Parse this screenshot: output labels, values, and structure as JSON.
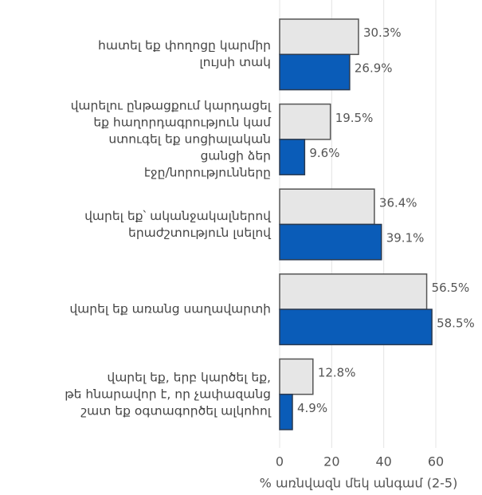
{
  "chart_data": {
    "type": "bar",
    "orientation": "horizontal",
    "categories": [
      "հատել եք փողոցը կարմիր\nլույսի տակ",
      "վարելու ընթացքում կարդացել\nեք հաղորդագրություն կամ\nստուգել եք սոցիալական\nցանցի ձեր\nէջը/նորությունները",
      "վարել եք՝ ականջակալներով\nերաժշտություն լսելով",
      "վարել եք առանց սաղավարտի",
      "վարել եք, երբ կարծել եք,\nթե հնարավոր է, որ չափազանց\nշատ եք օգտագործել ալկոհոլ"
    ],
    "series": [
      {
        "color": "#e6e6e6",
        "values": [
          30.3,
          19.5,
          36.4,
          56.5,
          12.8
        ],
        "value_labels": [
          "30.3%",
          "19.5%",
          "36.4%",
          "56.5%",
          "12.8%"
        ]
      },
      {
        "color": "#0a5cb8",
        "values": [
          26.9,
          9.6,
          39.1,
          58.5,
          4.9
        ],
        "value_labels": [
          "26.9%",
          "9.6%",
          "39.1%",
          "58.5%",
          "4.9%"
        ]
      }
    ],
    "xlabel": "% առնվազն մեկ անգամ (2-5)",
    "xlim": [
      0,
      75
    ],
    "xticks": [
      0,
      20,
      40,
      60
    ],
    "grid": true
  }
}
